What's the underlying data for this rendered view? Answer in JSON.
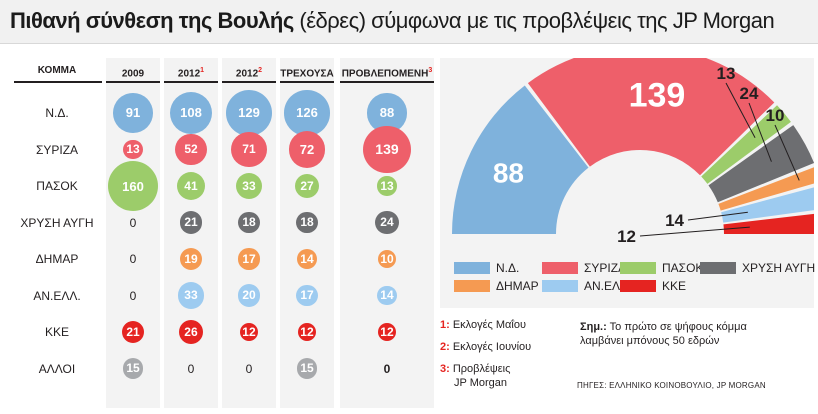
{
  "title": {
    "bold": "Πιθανή σύνθεση της Βουλής",
    "light": " (έδρες) σύμφωνα με τις προβλέψεις  της JP Morgan"
  },
  "table": {
    "party_header": "ΚΟΜΜΑ",
    "columns": [
      {
        "label": "2009",
        "note": ""
      },
      {
        "label": "2012",
        "note": "1"
      },
      {
        "label": "2012",
        "note": "2"
      },
      {
        "label": "ΤΡΕΧΟΥΣΑ",
        "note": ""
      },
      {
        "label": "ΠΡΟΒΛΕΠΟΜΕΝΗ",
        "note": "3"
      }
    ],
    "rows": [
      {
        "party": "Ν.Δ.",
        "color": "#7fb2dc",
        "values": [
          91,
          108,
          129,
          126,
          88
        ]
      },
      {
        "party": "ΣΥΡΙΖΑ",
        "color": "#ee5f6a",
        "values": [
          13,
          52,
          71,
          72,
          139
        ]
      },
      {
        "party": "ΠΑΣΟΚ",
        "color": "#9ccc6a",
        "values": [
          160,
          41,
          33,
          27,
          13
        ]
      },
      {
        "party": "ΧΡΥΣΗ ΑΥΓΗ",
        "color": "#6d6e71",
        "values": [
          0,
          21,
          18,
          18,
          24
        ]
      },
      {
        "party": "ΔΗΜΑΡ",
        "color": "#f59a52",
        "values": [
          0,
          19,
          17,
          14,
          10
        ]
      },
      {
        "party": "ΑΝ.ΕΛΛ.",
        "color": "#9dcbf0",
        "values": [
          0,
          33,
          20,
          17,
          14
        ]
      },
      {
        "party": "ΚΚΕ",
        "color": "#e52421",
        "values": [
          21,
          26,
          12,
          12,
          12
        ]
      },
      {
        "party": "ΑΛΛΟΙ",
        "color": "#a7a9ac",
        "values": [
          15,
          0,
          0,
          15,
          0
        ]
      }
    ]
  },
  "chart_data": [
    {
      "type": "table",
      "columns": [
        "ΚΟΜΜΑ",
        "2009",
        "2012 (1)",
        "2012 (2)",
        "ΤΡΕΧΟΥΣΑ",
        "ΠΡΟΒΛΕΠΟΜΕΝΗ (3)"
      ],
      "rows": [
        [
          "Ν.Δ.",
          91,
          108,
          129,
          126,
          88
        ],
        [
          "ΣΥΡΙΖΑ",
          13,
          52,
          71,
          72,
          139
        ],
        [
          "ΠΑΣΟΚ",
          160,
          41,
          33,
          27,
          13
        ],
        [
          "ΧΡΥΣΗ ΑΥΓΗ",
          0,
          21,
          18,
          18,
          24
        ],
        [
          "ΔΗΜΑΡ",
          0,
          19,
          17,
          14,
          10
        ],
        [
          "ΑΝ.ΕΛΛ.",
          0,
          33,
          20,
          17,
          14
        ],
        [
          "ΚΚΕ",
          21,
          26,
          12,
          12,
          12
        ],
        [
          "ΑΛΛΟΙ",
          15,
          0,
          0,
          15,
          0
        ]
      ]
    },
    {
      "type": "pie",
      "subtype": "half-donut (parliament)",
      "categories": [
        "Ν.Δ.",
        "ΣΥΡΙΖΑ",
        "ΠΑΣΟΚ",
        "ΧΡΥΣΗ ΑΥΓΗ",
        "ΔΗΜΑΡ",
        "ΑΝ.ΕΛΛ.",
        "ΚΚΕ"
      ],
      "values": [
        88,
        139,
        13,
        24,
        10,
        14,
        12
      ],
      "colors": [
        "#7fb2dc",
        "#ee5f6a",
        "#9ccc6a",
        "#6d6e71",
        "#f59a52",
        "#9dcbf0",
        "#e52421"
      ],
      "legend": "bottom"
    }
  ],
  "legend": {
    "items": [
      {
        "label": "Ν.Δ.",
        "color": "#7fb2dc"
      },
      {
        "label": "ΣΥΡΙΖΑ",
        "color": "#ee5f6a"
      },
      {
        "label": "ΠΑΣΟΚ",
        "color": "#9ccc6a"
      },
      {
        "label": "ΧΡΥΣΗ ΑΥΓΗ",
        "color": "#6d6e71"
      },
      {
        "label": "ΔΗΜΑΡ",
        "color": "#f59a52"
      },
      {
        "label": "ΑΝ.ΕΛΛ.",
        "color": "#9dcbf0"
      },
      {
        "label": "ΚΚΕ",
        "color": "#e52421"
      }
    ]
  },
  "notes": {
    "n1_num": "1:",
    "n1_text": "Εκλογές Μαΐου",
    "n2_num": "2:",
    "n2_text": "Εκλογές Ιουνίου",
    "n3_num": "3:",
    "n3_text_line1": "Προβλέψεις",
    "n3_text_line2": "JP Morgan",
    "remark_label": "Σημ.:",
    "remark_text_line1": "Το πρώτο σε ψήφους κόμμα",
    "remark_text_line2": "λαμβάνει μπόνους 50 εδρών",
    "source": "ΠΗΓΕΣ: ΕΛΛΗΝΙΚΟ ΚΟΙΝΟΒΟΥΛΙΟ, JP MORGAN"
  }
}
